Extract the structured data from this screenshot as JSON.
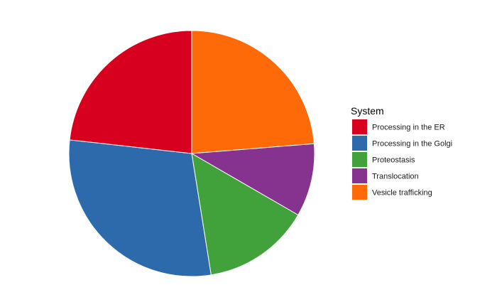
{
  "chart_data": {
    "type": "pie",
    "categories": [
      "Processing in the ER",
      "Processing in the Golgi",
      "Proteostasis",
      "Translocation",
      "Vesicle trafficking"
    ],
    "values": [
      0.23,
      0.29,
      0.14,
      0.095,
      0.235
    ],
    "colors": [
      "#d7001f",
      "#2d6aab",
      "#41a23b",
      "#85338f",
      "#ff6a09"
    ],
    "slice_order": [
      "Vesicle trafficking",
      "Translocation",
      "Proteostasis",
      "Processing in the Golgi",
      "Processing in the ER"
    ],
    "start": "12 o'clock, clockwise",
    "legend": {
      "title": "System",
      "placement": "right",
      "entries": [
        "Processing in the ER",
        "Processing in the Golgi",
        "Proteostasis",
        "Translocation",
        "Vesicle trafficking"
      ]
    }
  }
}
